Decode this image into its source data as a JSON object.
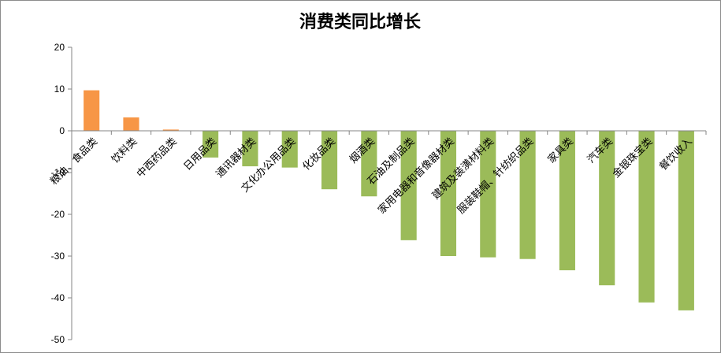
{
  "chart_data": {
    "type": "bar",
    "title": "消费类同比增长",
    "xlabel": "",
    "ylabel": "",
    "ylim": [
      -50,
      20
    ],
    "yticks": [
      20,
      10,
      0,
      -10,
      -20,
      -30,
      -40,
      -50
    ],
    "grid": false,
    "legend": "none",
    "colors": {
      "positive": "#F79646",
      "negative": "#9BBB59"
    },
    "categories": [
      "粮油、食品类",
      "饮料类",
      "中西药品类",
      "日用品类",
      "通讯器材类",
      "文化办公用品类",
      "化妆品类",
      "烟酒类",
      "石油及制品类",
      "家用电器和音像器材类",
      "建筑及装潢材料类",
      "服装鞋帽、针纺织品类",
      "家具类",
      "汽车类",
      "金银珠宝类",
      "餐饮收入"
    ],
    "values": [
      9.7,
      3.2,
      0.3,
      -6.4,
      -8.5,
      -8.8,
      -14.0,
      -15.7,
      -26.2,
      -30.0,
      -30.3,
      -30.7,
      -33.4,
      -37.0,
      -41.1,
      -43.0
    ]
  }
}
